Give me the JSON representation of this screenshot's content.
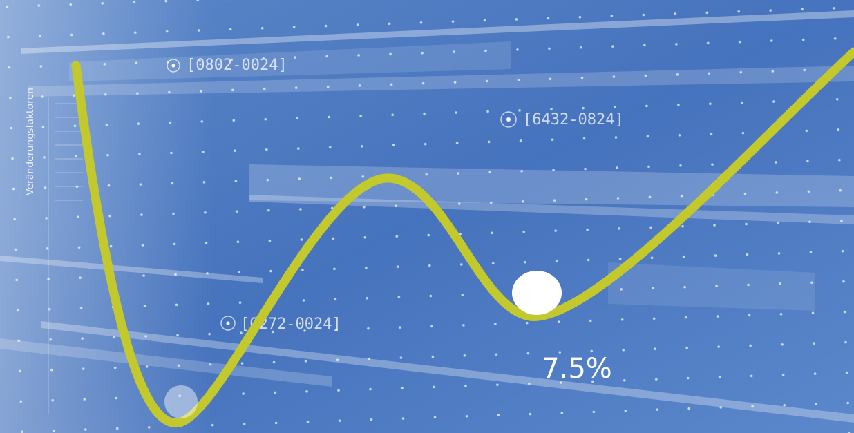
{
  "axis_label": "Veränderungsfaktoren",
  "codes": [
    "[0802-0024]",
    "[6432-0824]",
    "[0272-0024]"
  ],
  "annotation": "7.5%"
}
